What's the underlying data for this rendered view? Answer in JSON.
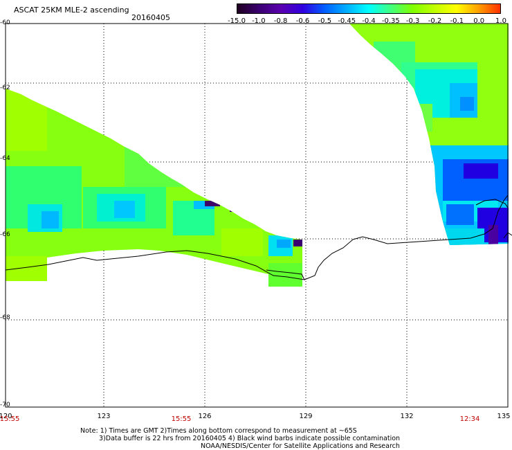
{
  "header": {
    "title": "ASCAT 25KM MLE-2 ascending",
    "date": "20160405"
  },
  "colorbar": {
    "labels": [
      "-15.0",
      "-1.0",
      "-0.8",
      "-0.6",
      "-0.5",
      "-0.45",
      "-0.4",
      "-0.35",
      "-0.3",
      "-0.2",
      "-0.1",
      "0.0",
      "1.0"
    ],
    "colors": [
      "#200020",
      "#3a0070",
      "#5a00b0",
      "#3000e0",
      "#0060ff",
      "#00b0ff",
      "#00ffff",
      "#40ff80",
      "#80ff00",
      "#c0ff00",
      "#ffff00",
      "#ffa000",
      "#ff3000"
    ]
  },
  "axes": {
    "lon_labels": [
      "120",
      "123",
      "126",
      "129",
      "132",
      "135"
    ],
    "lat_labels": [
      "-60",
      "-62",
      "-64",
      "-66",
      "-68",
      "-70"
    ]
  },
  "times": [
    "15:55",
    "15:55",
    "12:34"
  ],
  "notes": {
    "line1": "Note: 1) Times are GMT 2)Times along bottom correspond to measurement at ~65S",
    "line2": "3)Data buffer is 22 hrs from 20160405 4) Black wind barbs indicate possible contamination",
    "line3": "NOAA/NESDIS/Center for Satellite Applications and Research"
  }
}
